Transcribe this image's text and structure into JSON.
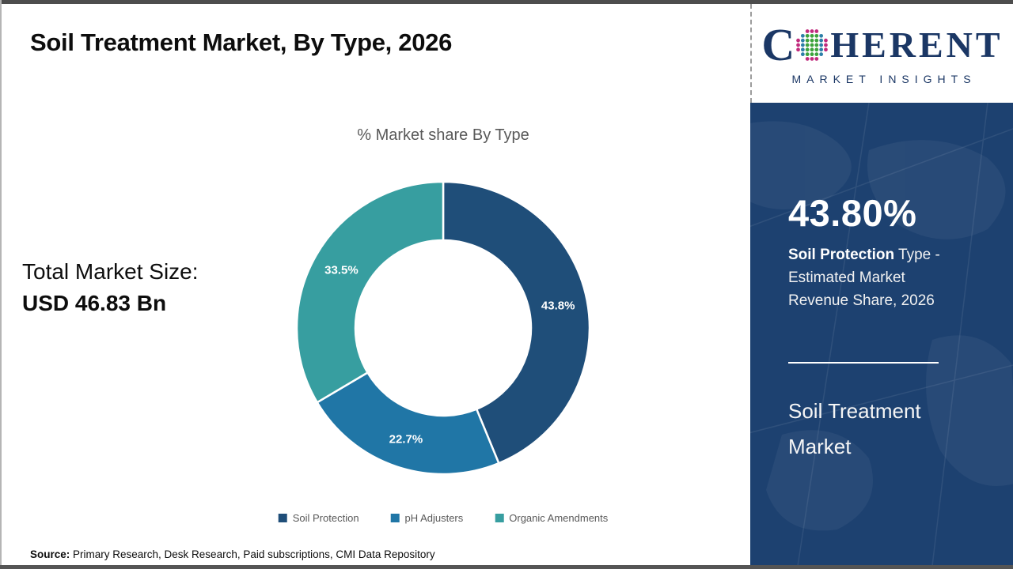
{
  "page": {
    "background": "#ffffff",
    "frame_color": "#4d4d4d",
    "sidebar_bg": "#1D4170"
  },
  "header": {
    "title": "Soil Treatment Market, By Type, 2026"
  },
  "brand": {
    "prefix": "C",
    "suffix": "HERENT",
    "tagline": "MARKET INSIGHTS",
    "color": "#1B3765",
    "globe_dot_colors": {
      "inner": "#3CA33C",
      "mid": "#2C7FA8",
      "outer": "#C12B7D"
    }
  },
  "chart_data": {
    "type": "pie",
    "title": "% Market share By Type",
    "categories": [
      "Soil Protection",
      "pH Adjusters",
      "Organic Amendments"
    ],
    "values": [
      43.8,
      22.7,
      33.5
    ],
    "data_labels": [
      "43.8%",
      "22.7%",
      "33.5%"
    ],
    "colors": [
      "#1F4E79",
      "#2076A6",
      "#379EA0"
    ],
    "donut_hole_ratio": 0.6,
    "start_angle_deg": 0,
    "direction": "clockwise",
    "legend_position": "bottom",
    "label_color": "#ffffff",
    "title_color": "#595959"
  },
  "market_size": {
    "label": "Total Market Size:",
    "value": "USD 46.83 Bn"
  },
  "sidebar": {
    "stat_value": "43.80%",
    "stat_bold": "Soil Protection",
    "stat_rest": " Type - Estimated Market Revenue Share, 2026",
    "market_name": "Soil Treatment Market"
  },
  "source": {
    "label": "Source:",
    "text": " Primary Research, Desk Research, Paid subscriptions, CMI Data Repository"
  }
}
